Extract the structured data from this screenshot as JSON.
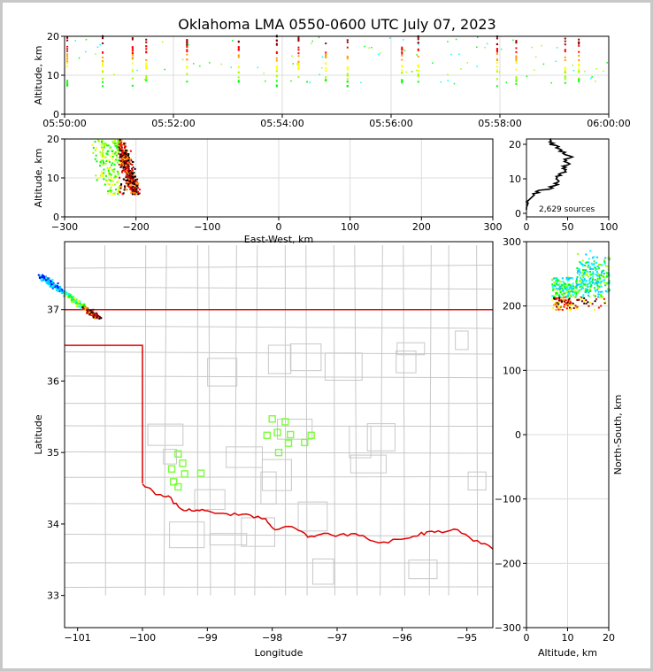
{
  "title": "Oklahoma LMA 0550-0600 UTC July 07, 2023",
  "chart_data": [
    {
      "type": "scatter",
      "panel": "altitude-time",
      "xlabel": "",
      "ylabel": "Altitude, km",
      "xticks": [
        "05:50:00",
        "05:52:00",
        "05:54:00",
        "05:56:00",
        "05:58:00",
        "06:00:00"
      ],
      "xlim_minutes": [
        0,
        10
      ],
      "ylim": [
        0,
        20
      ],
      "yticks": [
        0,
        10,
        20
      ],
      "grid": true,
      "activity_columns_minutes": [
        0.05,
        0.7,
        1.25,
        1.5,
        2.25,
        3.2,
        3.9,
        4.3,
        4.8,
        5.2,
        6.2,
        6.5,
        7.95,
        8.3,
        9.2,
        9.45
      ]
    },
    {
      "type": "scatter",
      "panel": "altitude-eastwest",
      "xlabel": "East-West, km",
      "ylabel": "Altitude, km",
      "xlim": [
        -300,
        300
      ],
      "xticks": [
        -300,
        -200,
        -100,
        0,
        100,
        200,
        300
      ],
      "ylim": [
        0,
        20
      ],
      "yticks": [
        0,
        10,
        20
      ],
      "grid": true,
      "cluster_center": {
        "x": -230,
        "alt": 14
      }
    },
    {
      "type": "line",
      "panel": "altitude-histogram",
      "xlim": [
        0,
        100
      ],
      "xticks": [
        0,
        50,
        100
      ],
      "ylim": [
        0,
        20
      ],
      "yticks": [
        0,
        10,
        20
      ],
      "annotation": "2,629 sources",
      "profile": [
        {
          "alt": 1,
          "count": 0
        },
        {
          "alt": 3,
          "count": 2
        },
        {
          "alt": 5,
          "count": 8
        },
        {
          "alt": 6,
          "count": 15
        },
        {
          "alt": 7,
          "count": 28
        },
        {
          "alt": 8,
          "count": 34
        },
        {
          "alt": 9,
          "count": 38
        },
        {
          "alt": 10,
          "count": 36
        },
        {
          "alt": 11,
          "count": 42
        },
        {
          "alt": 12,
          "count": 48
        },
        {
          "alt": 13,
          "count": 44
        },
        {
          "alt": 14,
          "count": 50
        },
        {
          "alt": 15,
          "count": 46
        },
        {
          "alt": 16,
          "count": 52
        },
        {
          "alt": 17,
          "count": 47
        },
        {
          "alt": 18,
          "count": 40
        },
        {
          "alt": 19,
          "count": 36
        },
        {
          "alt": 20,
          "count": 28
        },
        {
          "alt": 21,
          "count": 30
        }
      ]
    },
    {
      "type": "map",
      "panel": "plan-view",
      "xlabel": "Longitude",
      "ylabel": "Latitude",
      "xlim": [
        -101.2,
        -94.6
      ],
      "ylim": [
        32.55,
        37.95
      ],
      "xticks": [
        -101,
        -100,
        -99,
        -98,
        -97,
        -96,
        -95
      ],
      "yticks": [
        33,
        34,
        35,
        36,
        37
      ],
      "cluster_center": {
        "lon": -100.4,
        "lat": 37.3
      },
      "stations": [
        {
          "lon": -99.45,
          "lat": 34.98
        },
        {
          "lon": -99.38,
          "lat": 34.85
        },
        {
          "lon": -99.55,
          "lat": 34.77
        },
        {
          "lon": -99.35,
          "lat": 34.7
        },
        {
          "lon": -99.1,
          "lat": 34.71
        },
        {
          "lon": -99.52,
          "lat": 34.59
        },
        {
          "lon": -99.45,
          "lat": 34.52
        },
        {
          "lon": -98.0,
          "lat": 35.47
        },
        {
          "lon": -97.8,
          "lat": 35.43
        },
        {
          "lon": -97.92,
          "lat": 35.28
        },
        {
          "lon": -98.08,
          "lat": 35.24
        },
        {
          "lon": -97.72,
          "lat": 35.25
        },
        {
          "lon": -97.4,
          "lat": 35.24
        },
        {
          "lon": -97.5,
          "lat": 35.14
        },
        {
          "lon": -97.75,
          "lat": 35.13
        },
        {
          "lon": -97.9,
          "lat": 35.0
        }
      ]
    },
    {
      "type": "scatter",
      "panel": "northsouth-altitude",
      "xlabel": "Altitude, km",
      "ylabel": "North-South, km",
      "xlim": [
        0,
        20
      ],
      "xticks": [
        0,
        10,
        20
      ],
      "ylim": [
        -300,
        300
      ],
      "yticks": [
        -300,
        -200,
        -100,
        0,
        100,
        200,
        300
      ],
      "grid": true,
      "cluster_center": {
        "alt": 13,
        "ns": 215
      }
    }
  ]
}
